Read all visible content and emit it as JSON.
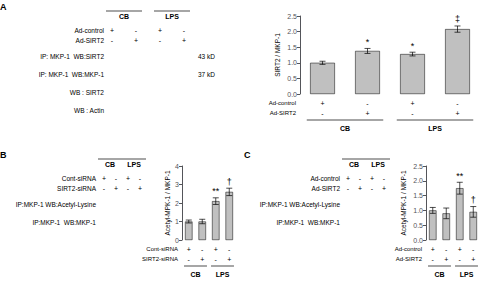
{
  "chart_data": [
    {
      "type": "bar",
      "title": "A",
      "categories": [
        null,
        null,
        null,
        null
      ],
      "values": [
        1.0,
        1.38,
        1.28,
        2.08
      ],
      "errors": [
        0.05,
        0.08,
        0.06,
        0.1
      ],
      "color": "#c0c0c0",
      "ylabel": "SIRT2 / MKP-1",
      "ylim": [
        0,
        2.5
      ],
      "yticks": [
        {
          "value": 0,
          "label": "0.0"
        },
        0.5,
        {
          "value": 1,
          "label": "1.0"
        },
        1.5,
        {
          "value": 2,
          "label": "2.0"
        },
        2.5
      ],
      "grid": false,
      "tick_labels": "y",
      "annotations": [
        null,
        "*",
        "*",
        "‡"
      ],
      "row_labels": [
        {
          "name": "Ad-control",
          "labels": [
            "+",
            "-",
            "+",
            "-"
          ]
        },
        {
          "name": "Ad-SIRT2",
          "labels": [
            "-",
            "+",
            "-",
            "+"
          ]
        }
      ],
      "group_labels": [
        "CB",
        "LPS"
      ],
      "blot": {
        "group_labels": [
          "CB",
          "LPS"
        ],
        "row_labels": [
          {
            "name": "Ad-control",
            "labels": [
              "+",
              "-",
              "+",
              "-"
            ]
          },
          {
            "name": "Ad-SIRT2",
            "labels": [
              "-",
              "+",
              "-",
              "+"
            ]
          }
        ],
        "band_labels": [
          "IP: MKP-1  WB:SIRT2",
          "IP: MKP-1  WB:MKP-1",
          "WB : SIRT2",
          "WB : Actin"
        ],
        "kd_labels": [
          "43 kD",
          "37 kD"
        ]
      }
    },
    {
      "type": "bar",
      "title": "B",
      "categories": [
        null,
        null,
        null,
        null
      ],
      "values": [
        1.0,
        1.0,
        2.1,
        2.6
      ],
      "errors": [
        0.08,
        0.12,
        0.18,
        0.2
      ],
      "color": "#c0c0c0",
      "ylabel": "Acetyl-MPK-1 / MKP-1",
      "ylim": [
        0,
        4
      ],
      "yticks": [
        0,
        1,
        2,
        3,
        4
      ],
      "grid": false,
      "tick_labels": "y",
      "annotations": [
        null,
        null,
        "**",
        "†"
      ],
      "row_labels": [
        {
          "name": "Cont-siRNA",
          "labels": [
            "+",
            "-",
            "+",
            "-"
          ]
        },
        {
          "name": "SIRT2-siRNA",
          "labels": [
            "-",
            "+",
            "-",
            "+"
          ]
        }
      ],
      "group_labels": [
        "CB",
        "LPS"
      ],
      "blot": {
        "group_labels": [
          "CB",
          "LPS"
        ],
        "row_labels": [
          {
            "name": "Cont-siRNA",
            "labels": [
              "+",
              "-",
              "+",
              "-"
            ]
          },
          {
            "name": "SIRT2-siRNA",
            "labels": [
              "-",
              "+",
              "-",
              "+"
            ]
          }
        ],
        "band_labels": [
          "IP:MKP-1 WB:Acetyl-Lysine",
          "IP:MKP-1  WB:MKP-1"
        ]
      }
    },
    {
      "type": "bar",
      "title": "C",
      "categories": [
        null,
        null,
        null,
        null
      ],
      "values": [
        1.0,
        0.9,
        1.75,
        0.95
      ],
      "errors": [
        0.1,
        0.18,
        0.2,
        0.18
      ],
      "color": "#c0c0c0",
      "ylabel": "Acetyl-MPK-1 / MKP-1",
      "ylim": [
        0,
        2.5
      ],
      "yticks": [
        {
          "value": 0,
          "label": "0.0"
        },
        0.5,
        {
          "value": 1,
          "label": "1.0"
        },
        1.5,
        {
          "value": 2,
          "label": "2.0"
        },
        2.5
      ],
      "grid": false,
      "tick_labels": "y",
      "annotations": [
        null,
        null,
        "**",
        "†"
      ],
      "row_labels": [
        {
          "name": "Ad-control",
          "labels": [
            "+",
            "-",
            "+",
            "-"
          ]
        },
        {
          "name": "Ad-SIRT2",
          "labels": [
            "-",
            "+",
            "-",
            "+"
          ]
        }
      ],
      "group_labels": [
        "CB",
        "LPS"
      ],
      "blot": {
        "group_labels": [
          "CB",
          "LPS"
        ],
        "row_labels": [
          {
            "name": "Ad-control",
            "labels": [
              "+",
              "-",
              "+",
              "-"
            ]
          },
          {
            "name": "Ad-SIRT2",
            "labels": [
              "-",
              "+",
              "-",
              "+"
            ]
          }
        ],
        "band_labels": [
          "IP:MKP-1 WB:Acetyl-Lysine",
          "IP:MKP-1  WB:MKP-1"
        ]
      }
    }
  ]
}
